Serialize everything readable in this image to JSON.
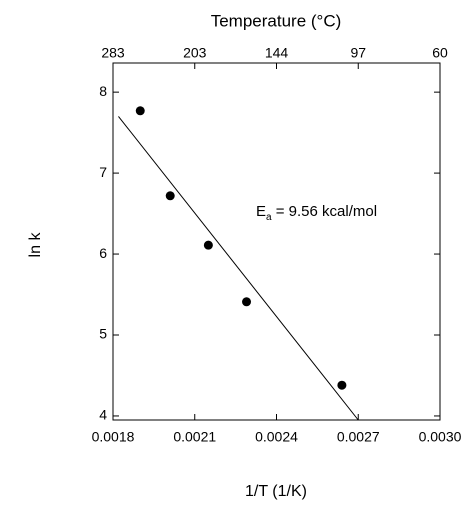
{
  "chart_data": {
    "type": "scatter",
    "x_label": "1/T (1/K)",
    "y_label": "ln k",
    "x2_label": "Temperature (°C)",
    "annotation": {
      "base": "E",
      "sub": "a",
      "rest": " = 9.56 kcal/mol"
    },
    "x": [
      0.0019,
      0.00201,
      0.00215,
      0.00229,
      0.00264
    ],
    "values": [
      7.77,
      6.72,
      6.11,
      5.41,
      4.38
    ],
    "color": "#000000",
    "fit": {
      "x": [
        0.00182,
        0.0027
      ],
      "y": [
        7.7,
        3.95
      ],
      "color": "#000000"
    },
    "xlim": [
      0.0018,
      0.003
    ],
    "ylim": [
      3.95,
      8.36
    ],
    "xticks": [
      {
        "value": 0.0018,
        "label": "0.0018"
      },
      {
        "value": 0.0021,
        "label": "0.0021"
      },
      {
        "value": 0.0024,
        "label": "0.0024"
      },
      {
        "value": 0.0027,
        "label": "0.0027"
      },
      {
        "value": 0.003,
        "label": "0.0030"
      }
    ],
    "x2ticks": [
      {
        "value": 0.0018,
        "label": "283"
      },
      {
        "value": 0.0021,
        "label": "203"
      },
      {
        "value": 0.0024,
        "label": "144"
      },
      {
        "value": 0.0027,
        "label": "97"
      },
      {
        "value": 0.003,
        "label": "60"
      }
    ],
    "yticks": [
      4,
      5,
      6,
      7,
      8
    ]
  }
}
